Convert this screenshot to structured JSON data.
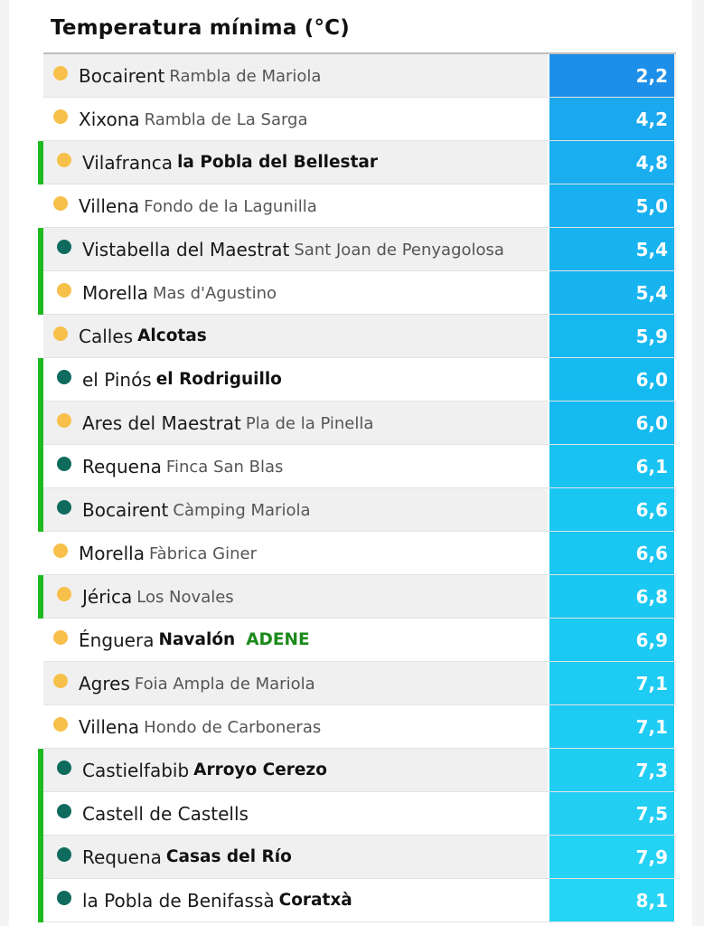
{
  "chart_data": {
    "type": "table",
    "title": "Temperatura mínima (°C)",
    "rows": [
      {
        "town": "Bocairent",
        "station": "Rambla de Mariola",
        "station_bold": false,
        "dot": "yellow",
        "marked": false,
        "value": "2,2",
        "color": "#1e8fe8"
      },
      {
        "town": "Xixona",
        "station": "Rambla de La Sarga",
        "station_bold": false,
        "dot": "yellow",
        "marked": false,
        "value": "4,2",
        "color": "#1aa8ee"
      },
      {
        "town": "Vilafranca",
        "station": "la Pobla del Bellestar",
        "station_bold": true,
        "dot": "yellow",
        "marked": true,
        "value": "4,8",
        "color": "#19aef0"
      },
      {
        "town": "Villena",
        "station": "Fondo de la Lagunilla",
        "station_bold": false,
        "dot": "yellow",
        "marked": false,
        "value": "5,0",
        "color": "#18b0f0"
      },
      {
        "town": "Vistabella del Maestrat",
        "station": "Sant Joan de Penyagolosa",
        "station_bold": false,
        "dot": "teal",
        "marked": true,
        "value": "5,4",
        "color": "#17b4f0"
      },
      {
        "town": "Morella",
        "station": "Mas d'Agustino",
        "station_bold": false,
        "dot": "yellow",
        "marked": true,
        "value": "5,4",
        "color": "#17b4f0"
      },
      {
        "town": "Calles",
        "station": "Alcotas",
        "station_bold": true,
        "dot": "yellow",
        "marked": false,
        "value": "5,9",
        "color": "#16b8f0"
      },
      {
        "town": "el Pinós",
        "station": "el Rodriguillo",
        "station_bold": true,
        "dot": "teal",
        "marked": true,
        "value": "6,0",
        "color": "#15baf0"
      },
      {
        "town": "Ares del Maestrat",
        "station": "Pla de la Pinella",
        "station_bold": false,
        "dot": "yellow",
        "marked": true,
        "value": "6,0",
        "color": "#15baf0"
      },
      {
        "town": "Requena",
        "station": "Finca San Blas",
        "station_bold": false,
        "dot": "teal",
        "marked": true,
        "value": "6,1",
        "color": "#18c3f1"
      },
      {
        "town": "Bocairent",
        "station": "Càmping Mariola",
        "station_bold": false,
        "dot": "teal",
        "marked": true,
        "value": "6,6",
        "color": "#1ac6f2"
      },
      {
        "town": "Morella",
        "station": "Fàbrica Giner",
        "station_bold": false,
        "dot": "yellow",
        "marked": false,
        "value": "6,6",
        "color": "#1ac6f2"
      },
      {
        "town": "Jérica",
        "station": "Los Novales",
        "station_bold": false,
        "dot": "yellow",
        "marked": true,
        "value": "6,8",
        "color": "#1bc8f2"
      },
      {
        "town": "Énguera",
        "station": "Navalón",
        "station_bold": true,
        "dot": "yellow",
        "marked": false,
        "value": "6,9",
        "color": "#1cc9f2",
        "tag": "ADENE"
      },
      {
        "town": "Agres",
        "station": "Foia Ampla de Mariola",
        "station_bold": false,
        "dot": "yellow",
        "marked": false,
        "value": "7,1",
        "color": "#1ecbf3"
      },
      {
        "town": "Villena",
        "station": "Hondo de Carboneras",
        "station_bold": false,
        "dot": "yellow",
        "marked": false,
        "value": "7,1",
        "color": "#1ecbf3"
      },
      {
        "town": "Castielfabib",
        "station": "Arroyo Cerezo",
        "station_bold": true,
        "dot": "teal",
        "marked": true,
        "value": "7,3",
        "color": "#20cdf3"
      },
      {
        "town": "Castell de Castells",
        "station": "",
        "station_bold": false,
        "dot": "teal",
        "marked": true,
        "value": "7,5",
        "color": "#22cff3"
      },
      {
        "town": "Requena",
        "station": "Casas del Río",
        "station_bold": true,
        "dot": "teal",
        "marked": true,
        "value": "7,9",
        "color": "#24d2f4"
      },
      {
        "town": "la Pobla de Benifassà",
        "station": "Coratxà",
        "station_bold": true,
        "dot": "teal",
        "marked": true,
        "value": "8,1",
        "color": "#26d4f4"
      }
    ]
  }
}
